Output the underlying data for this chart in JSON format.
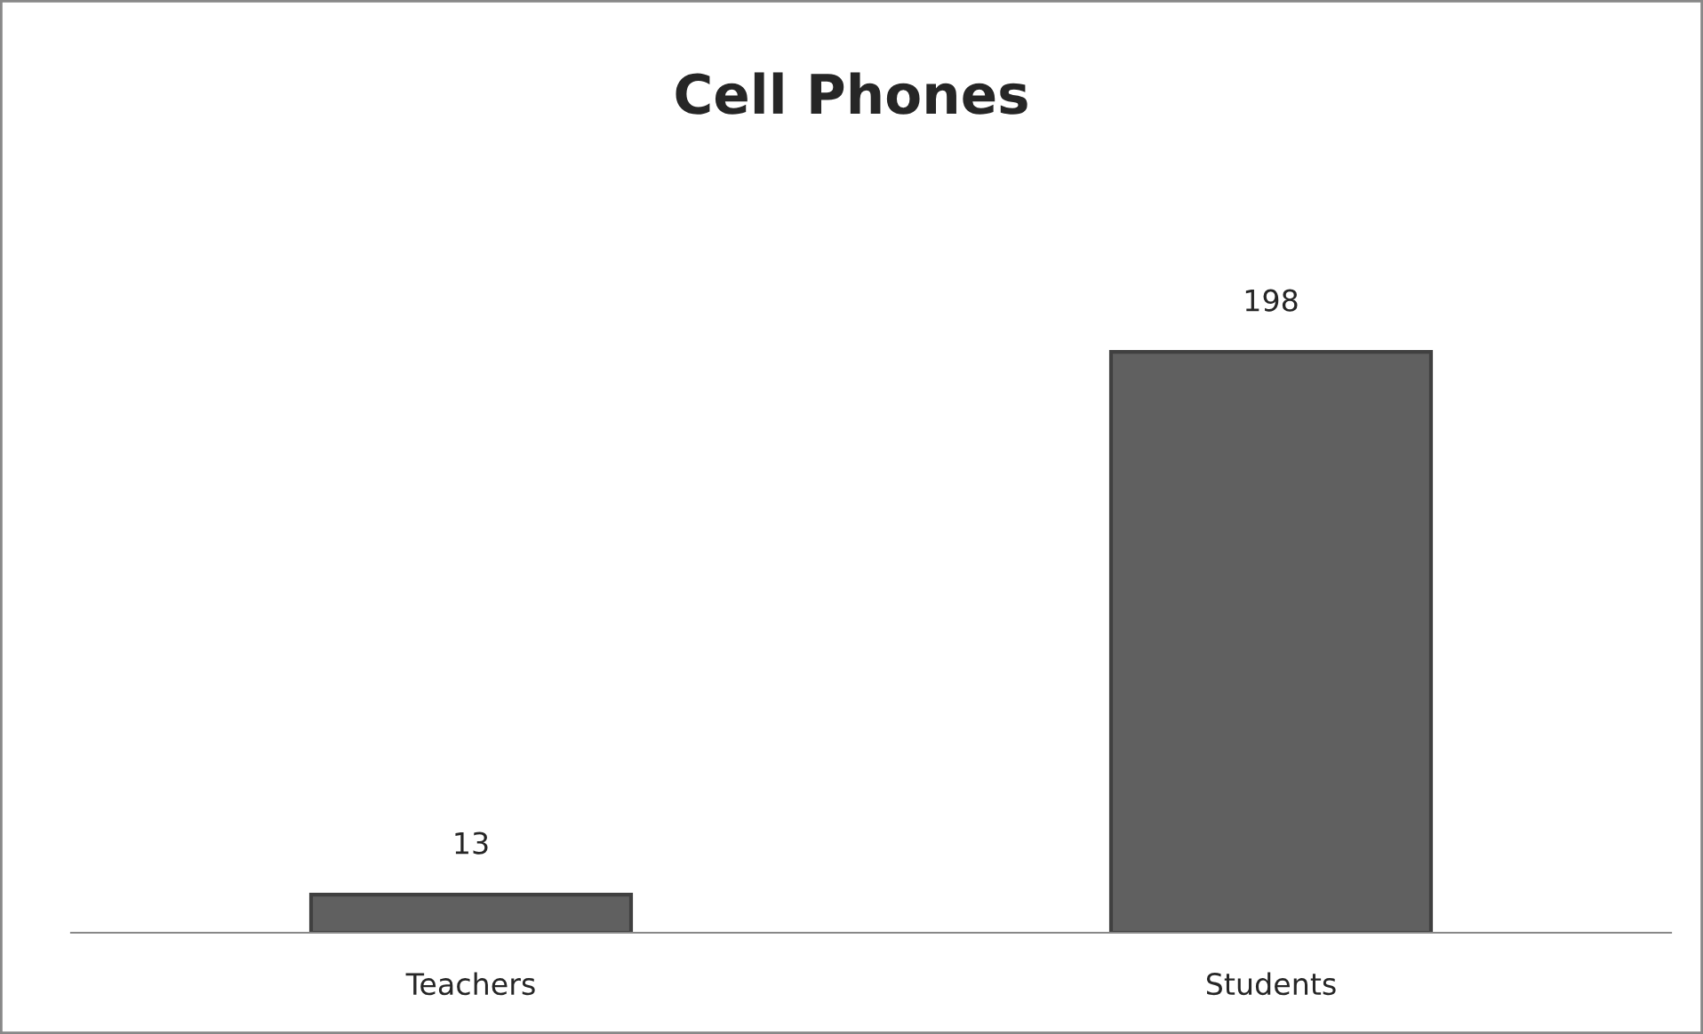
{
  "chart_data": {
    "type": "bar",
    "title": "Cell Phones",
    "categories": [
      "Teachers",
      "Students"
    ],
    "values": [
      13,
      198
    ],
    "color": "#606060",
    "data_labels": true,
    "tick_labels": "x",
    "grid": false
  }
}
